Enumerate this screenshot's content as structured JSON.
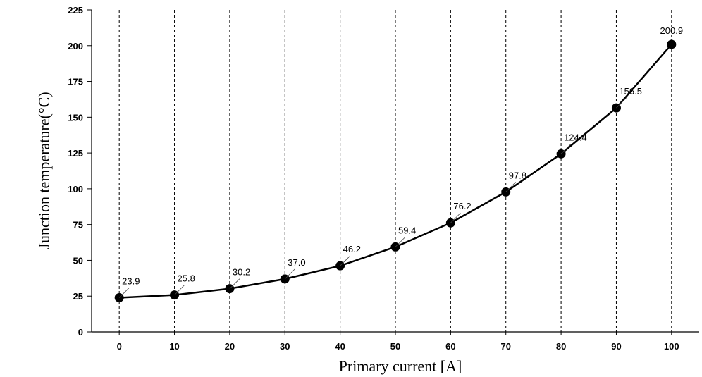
{
  "chart_data": {
    "type": "line",
    "title": "",
    "xlabel": "Primary current [A]",
    "ylabel": "Junction temperature(°C)",
    "x": [
      0,
      10,
      20,
      30,
      40,
      50,
      60,
      70,
      80,
      90,
      100
    ],
    "series": [
      {
        "values": [
          23.9,
          25.8,
          30.2,
          37.0,
          46.2,
          59.4,
          76.2,
          97.8,
          124.4,
          156.5,
          200.9
        ],
        "labels": [
          "23.9",
          "25.8",
          "30.2",
          "37.0",
          "46.2",
          "59.4",
          "76.2",
          "97.8",
          "124.4",
          "156.5",
          "200.9"
        ],
        "color": "#000000",
        "marker": "circle"
      }
    ],
    "xticks": [
      "0",
      "10",
      "20",
      "30",
      "40",
      "50",
      "60",
      "70",
      "80",
      "90",
      "100"
    ],
    "yticks": [
      "0",
      "25",
      "50",
      "75",
      "100",
      "125",
      "150",
      "175",
      "200",
      "225"
    ],
    "xlim": [
      -5,
      105
    ],
    "ylim": [
      0,
      225
    ],
    "grid": "vertical-dashed",
    "legend": "none"
  }
}
